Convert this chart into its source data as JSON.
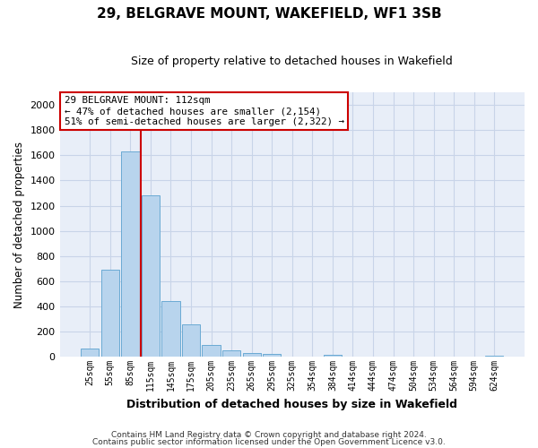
{
  "title": "29, BELGRAVE MOUNT, WAKEFIELD, WF1 3SB",
  "subtitle": "Size of property relative to detached houses in Wakefield",
  "xlabel": "Distribution of detached houses by size in Wakefield",
  "ylabel": "Number of detached properties",
  "bar_labels": [
    "25sqm",
    "55sqm",
    "85sqm",
    "115sqm",
    "145sqm",
    "175sqm",
    "205sqm",
    "235sqm",
    "265sqm",
    "295sqm",
    "325sqm",
    "354sqm",
    "384sqm",
    "414sqm",
    "444sqm",
    "474sqm",
    "504sqm",
    "534sqm",
    "564sqm",
    "594sqm",
    "624sqm"
  ],
  "bar_values": [
    65,
    690,
    1630,
    1280,
    440,
    255,
    90,
    52,
    30,
    20,
    0,
    0,
    12,
    0,
    0,
    0,
    0,
    0,
    0,
    0,
    8
  ],
  "bar_color": "#b8d4ed",
  "bar_edge_color": "#6aaad4",
  "vline_x": 2.5,
  "vline_color": "#cc0000",
  "annotation_text": "29 BELGRAVE MOUNT: 112sqm\n← 47% of detached houses are smaller (2,154)\n51% of semi-detached houses are larger (2,322) →",
  "annotation_box_color": "#ffffff",
  "annotation_box_edge": "#cc0000",
  "ylim": [
    0,
    2100
  ],
  "yticks": [
    0,
    200,
    400,
    600,
    800,
    1000,
    1200,
    1400,
    1600,
    1800,
    2000
  ],
  "footer_line1": "Contains HM Land Registry data © Crown copyright and database right 2024.",
  "footer_line2": "Contains public sector information licensed under the Open Government Licence v3.0.",
  "background_color": "#ffffff",
  "plot_bg_color": "#e8eef8",
  "grid_color": "#c8d4e8"
}
